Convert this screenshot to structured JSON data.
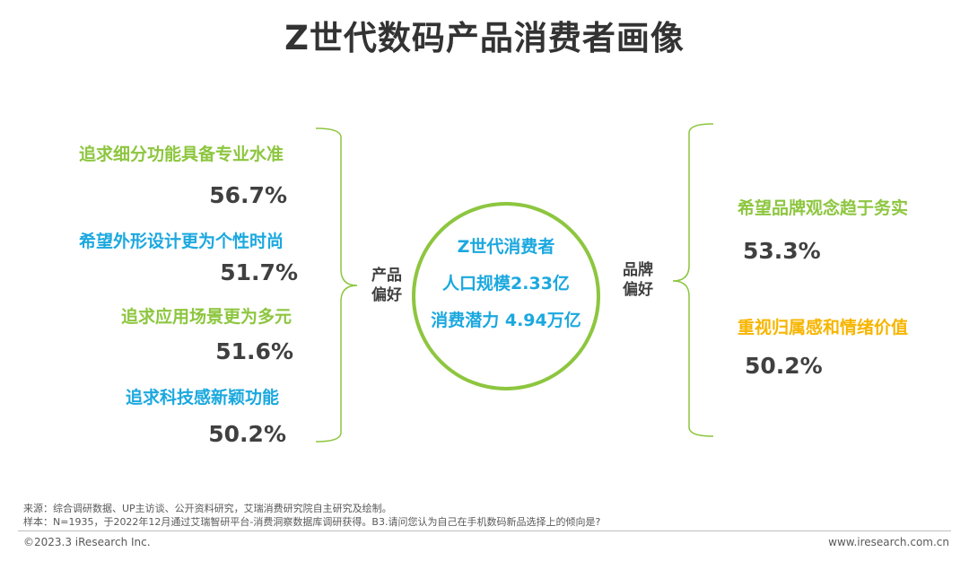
{
  "title": "Z世代数码产品消费者画像",
  "left_category": "产品\n偏好",
  "right_category": "品牌\n偏好",
  "center": {
    "line1": "Z世代消费者",
    "line2": "人口规模2.33亿",
    "line3": "消费潜力 4.94万亿"
  },
  "product_preferences": [
    {
      "label": "追求细分功能具备专业水准",
      "value": "56.7%",
      "color": "#8DC63F"
    },
    {
      "label": "希望外形设计更为个性时尚",
      "value": "51.7%",
      "color": "#1BA8DF"
    },
    {
      "label": "追求应用场景更为多元",
      "value": "51.6%",
      "color": "#8DC63F"
    },
    {
      "label": "追求科技感新颖功能",
      "value": "50.2%",
      "color": "#1BA8DF"
    }
  ],
  "brand_preferences": [
    {
      "label": "希望品牌观念趋于务实",
      "value": "53.3%",
      "color": "#8DC63F"
    },
    {
      "label": "重视归属感和情绪价值",
      "value": "50.2%",
      "color": "#F7B500"
    }
  ],
  "footer": {
    "source": "来源：综合调研数据、UP主访谈、公开资料研究，艾瑞消费研究院自主研究及绘制。",
    "sample": "样本：N=1935，于2022年12月通过艾瑞智研平台-消费洞察数据库调研获得。B3.请问您认为自己在手机数码新品选择上的倾向是?",
    "copyright": "©2023.3 iResearch Inc.",
    "website": "www.iresearch.com.cn"
  }
}
